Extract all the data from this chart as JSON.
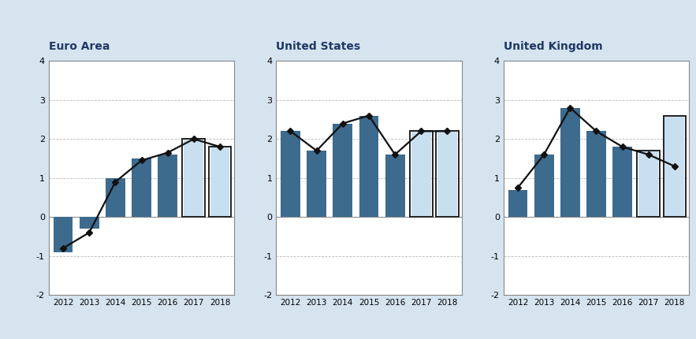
{
  "euro_area": {
    "title": "Euro Area",
    "years": [
      2012,
      2013,
      2014,
      2015,
      2016,
      2017,
      2018
    ],
    "bar_values": [
      -0.9,
      -0.3,
      1.0,
      1.5,
      1.6,
      2.0,
      1.8
    ],
    "bar_forecast": [
      false,
      false,
      false,
      false,
      false,
      true,
      true
    ],
    "line_values": [
      -0.8,
      -0.4,
      0.9,
      1.45,
      1.65,
      2.0,
      1.8
    ]
  },
  "united_states": {
    "title": "United States",
    "years": [
      2012,
      2013,
      2014,
      2015,
      2016,
      2017,
      2018
    ],
    "bar_values": [
      2.2,
      1.7,
      2.4,
      2.6,
      1.6,
      2.2,
      2.2
    ],
    "bar_forecast": [
      false,
      false,
      false,
      false,
      false,
      true,
      true
    ],
    "line_values": [
      2.2,
      1.7,
      2.4,
      2.6,
      1.6,
      2.2,
      2.2
    ]
  },
  "united_kingdom": {
    "title": "United Kingdom",
    "years": [
      2012,
      2013,
      2014,
      2015,
      2016,
      2017,
      2018
    ],
    "bar_values": [
      0.7,
      1.6,
      2.8,
      2.2,
      1.8,
      1.7,
      2.6
    ],
    "bar_forecast": [
      false,
      false,
      false,
      false,
      false,
      true,
      true
    ],
    "line_values": [
      0.75,
      1.6,
      2.8,
      2.2,
      1.8,
      1.6,
      1.3
    ]
  },
  "bar_color": "#3d6b8e",
  "bar_forecast_color": "#c8dff0",
  "bar_forecast_edgecolor": "#222222",
  "line_color": "#111111",
  "marker": "D",
  "marker_size": 4,
  "ylim": [
    -2,
    4
  ],
  "yticks": [
    -2,
    -1,
    0,
    1,
    2,
    3,
    4
  ],
  "title_color": "#1f3864",
  "fig_background": "#d6e4f0"
}
